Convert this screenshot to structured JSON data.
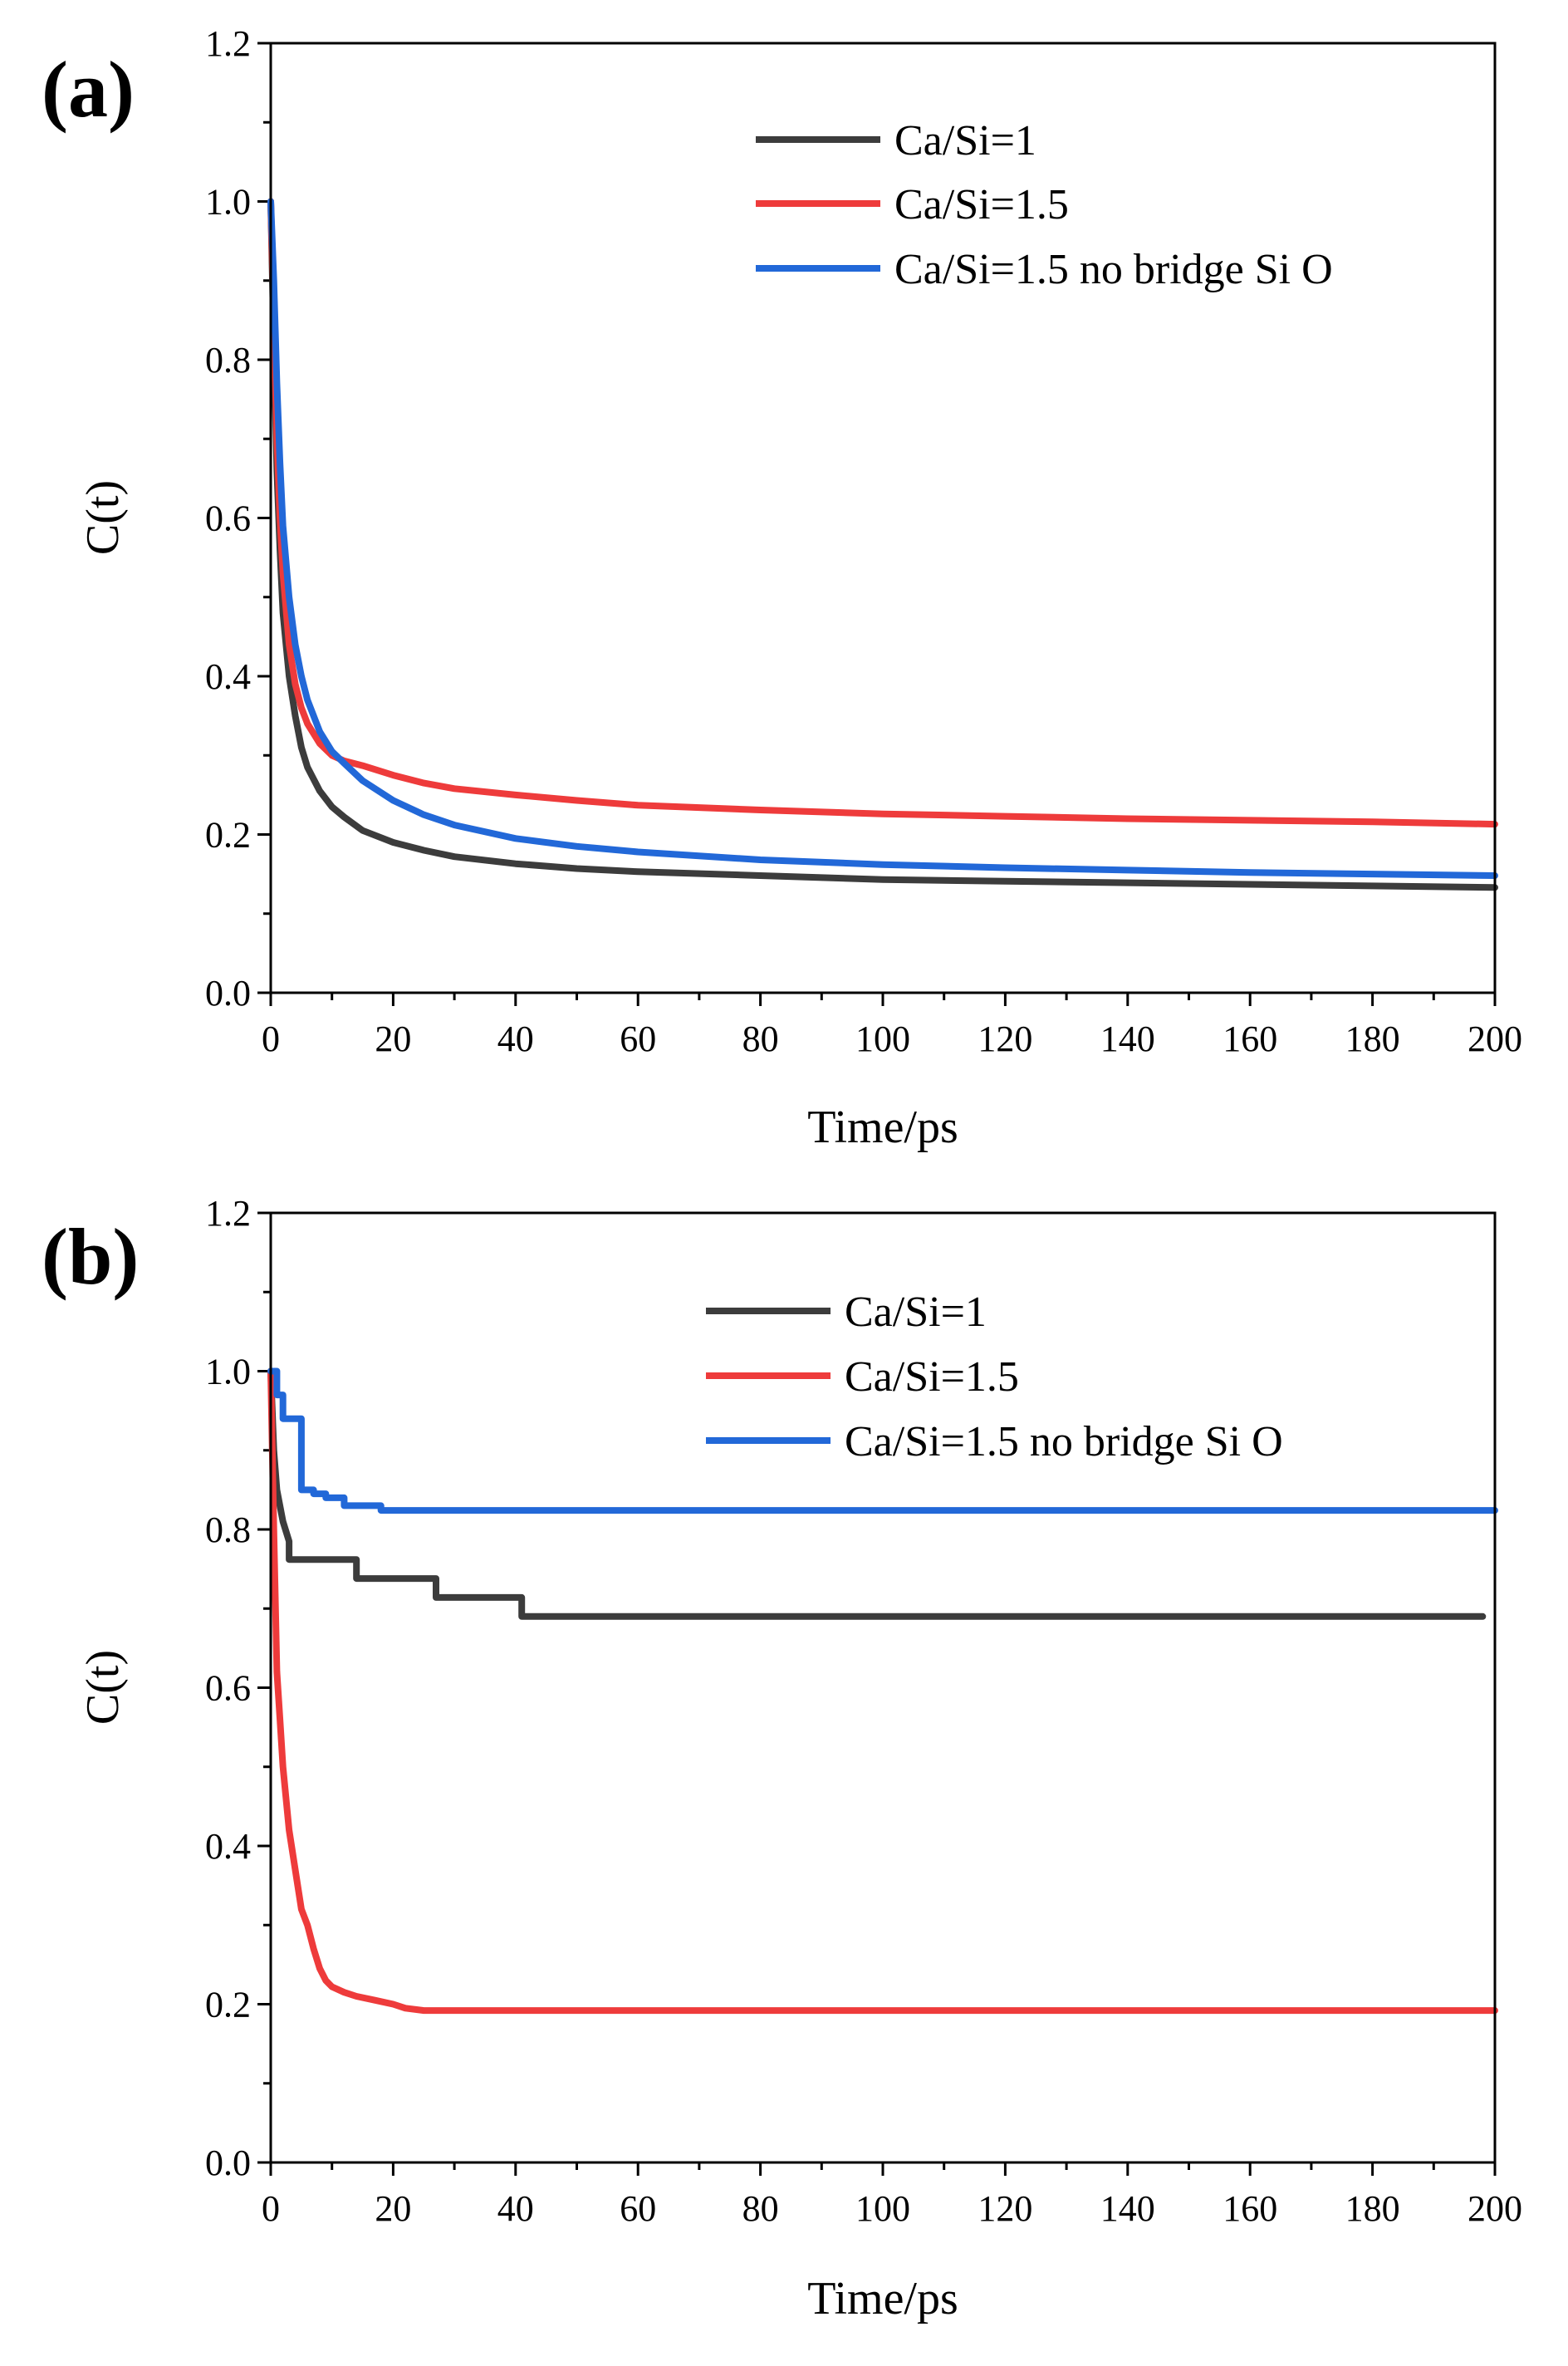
{
  "chart_data": [
    {
      "type": "line",
      "panel_label": "(a)",
      "title": "",
      "xlabel": "Time/ps",
      "ylabel": "C(t)",
      "xlim": [
        0,
        200
      ],
      "ylim": [
        0,
        1.2
      ],
      "xticks": [
        0,
        20,
        40,
        60,
        80,
        100,
        120,
        140,
        160,
        180,
        200
      ],
      "yticks": [
        0.0,
        0.2,
        0.4,
        0.6,
        0.8,
        1.0,
        1.2
      ],
      "xtick_labels": [
        "0",
        "20",
        "40",
        "60",
        "80",
        "100",
        "120",
        "140",
        "160",
        "180",
        "200"
      ],
      "ytick_labels": [
        "0.0",
        "0.2",
        "0.4",
        "0.6",
        "0.8",
        "1.0",
        "1.2"
      ],
      "grid": false,
      "legend_position": "top-right",
      "series": [
        {
          "name": "Ca/Si=1",
          "color": "#3c3c3c",
          "x": [
            0,
            0.5,
            1,
            1.5,
            2,
            3,
            4,
            5,
            6,
            8,
            10,
            12,
            15,
            20,
            25,
            30,
            40,
            50,
            60,
            80,
            100,
            120,
            140,
            160,
            180,
            200
          ],
          "y": [
            1.0,
            0.82,
            0.66,
            0.56,
            0.48,
            0.4,
            0.35,
            0.31,
            0.285,
            0.255,
            0.235,
            0.222,
            0.205,
            0.19,
            0.18,
            0.172,
            0.163,
            0.157,
            0.153,
            0.148,
            0.143,
            0.141,
            0.139,
            0.137,
            0.135,
            0.133
          ]
        },
        {
          "name": "Ca/Si=1.5",
          "color": "#ee3b3b",
          "x": [
            0,
            0.5,
            1,
            1.5,
            2,
            3,
            4,
            5,
            6,
            8,
            10,
            12,
            15,
            20,
            25,
            30,
            40,
            50,
            60,
            80,
            100,
            120,
            140,
            160,
            180,
            200
          ],
          "y": [
            1.0,
            0.85,
            0.7,
            0.6,
            0.53,
            0.44,
            0.39,
            0.36,
            0.34,
            0.315,
            0.3,
            0.293,
            0.287,
            0.275,
            0.265,
            0.258,
            0.25,
            0.243,
            0.237,
            0.231,
            0.226,
            0.223,
            0.22,
            0.218,
            0.216,
            0.213
          ]
        },
        {
          "name": "Ca/Si=1.5 no bridge Si O",
          "color": "#2268d8",
          "x": [
            0,
            0.5,
            1,
            1.5,
            2,
            3,
            4,
            5,
            6,
            8,
            10,
            12,
            15,
            20,
            25,
            30,
            40,
            50,
            60,
            80,
            100,
            120,
            140,
            160,
            180,
            200
          ],
          "y": [
            1.0,
            0.9,
            0.77,
            0.67,
            0.59,
            0.5,
            0.44,
            0.4,
            0.37,
            0.33,
            0.305,
            0.29,
            0.268,
            0.243,
            0.225,
            0.212,
            0.195,
            0.185,
            0.178,
            0.168,
            0.162,
            0.158,
            0.155,
            0.152,
            0.15,
            0.148
          ]
        }
      ]
    },
    {
      "type": "line",
      "panel_label": "(b)",
      "title": "",
      "xlabel": "Time/ps",
      "ylabel": "C(t)",
      "xlim": [
        0,
        200
      ],
      "ylim": [
        0,
        1.2
      ],
      "xticks": [
        0,
        20,
        40,
        60,
        80,
        100,
        120,
        140,
        160,
        180,
        200
      ],
      "yticks": [
        0.0,
        0.2,
        0.4,
        0.6,
        0.8,
        1.0,
        1.2
      ],
      "xtick_labels": [
        "0",
        "20",
        "40",
        "60",
        "80",
        "100",
        "120",
        "140",
        "160",
        "180",
        "200"
      ],
      "ytick_labels": [
        "0.0",
        "0.2",
        "0.4",
        "0.6",
        "0.8",
        "1.0",
        "1.2"
      ],
      "grid": false,
      "legend_position": "top-center",
      "series": [
        {
          "name": "Ca/Si=1",
          "color": "#3c3c3c",
          "x": [
            0,
            0.5,
            1,
            2,
            3,
            3,
            14,
            14,
            27,
            27,
            41,
            41,
            198
          ],
          "y": [
            1.0,
            0.9,
            0.85,
            0.81,
            0.785,
            0.762,
            0.762,
            0.738,
            0.738,
            0.714,
            0.714,
            0.69,
            0.69
          ]
        },
        {
          "name": "Ca/Si=1.5",
          "color": "#ee3b3b",
          "x": [
            0,
            0.5,
            1,
            1.5,
            2,
            3,
            4,
            5,
            6,
            7,
            8,
            9,
            10,
            12,
            14,
            17,
            20,
            22,
            25,
            200
          ],
          "y": [
            1.0,
            0.8,
            0.62,
            0.56,
            0.5,
            0.42,
            0.37,
            0.32,
            0.3,
            0.27,
            0.245,
            0.23,
            0.222,
            0.215,
            0.21,
            0.205,
            0.2,
            0.195,
            0.192,
            0.192
          ]
        },
        {
          "name": "Ca/Si=1.5 no bridge Si O",
          "color": "#2268d8",
          "x": [
            0,
            1,
            1,
            2,
            2,
            5,
            5,
            7,
            7,
            9,
            9,
            12,
            12,
            18,
            18,
            200
          ],
          "y": [
            1.0,
            1.0,
            0.97,
            0.97,
            0.94,
            0.94,
            0.85,
            0.85,
            0.845,
            0.845,
            0.84,
            0.84,
            0.83,
            0.83,
            0.824,
            0.824
          ]
        }
      ]
    }
  ]
}
